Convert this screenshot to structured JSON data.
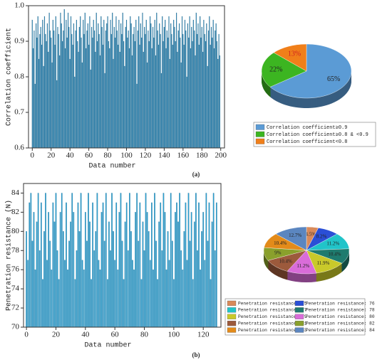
{
  "chart_data": [
    {
      "type": "bar",
      "caption": "(a)",
      "xlabel": "Data number",
      "ylabel": "Correlation coefficient",
      "color": "#2a82b0",
      "xlim": [
        -4,
        204
      ],
      "xticks": [
        0,
        20,
        40,
        60,
        80,
        100,
        120,
        140,
        160,
        180,
        200
      ],
      "ylim": [
        0.6,
        1
      ],
      "yticks": [
        0.6,
        0.7,
        0.8,
        0.9,
        {
          "value": 1,
          "label": "1.0"
        }
      ],
      "values": [
        0.96,
        0.88,
        0.93,
        0.78,
        0.95,
        0.91,
        0.97,
        0.85,
        0.92,
        0.94,
        0.89,
        0.96,
        0.83,
        0.97,
        0.92,
        0.9,
        0.95,
        0.87,
        0.98,
        0.93,
        0.91,
        0.84,
        0.96,
        0.93,
        0.89,
        0.97,
        0.79,
        0.94,
        0.92,
        0.86,
        0.98,
        0.95,
        0.9,
        0.93,
        0.99,
        0.88,
        0.96,
        0.91,
        0.98,
        0.94,
        0.85,
        0.97,
        0.92,
        0.89,
        0.95,
        0.8,
        0.93,
        0.96,
        0.9,
        0.87,
        0.94,
        0.97,
        0.91,
        0.84,
        0.96,
        0.92,
        0.98,
        0.88,
        0.93,
        0.95,
        0.89,
        0.97,
        0.82,
        0.94,
        0.91,
        0.96,
        0.93,
        0.87,
        0.98,
        0.9,
        0.95,
        0.92,
        0.86,
        0.97,
        0.94,
        0.89,
        0.96,
        0.81,
        0.93,
        0.95,
        0.97,
        0.9,
        0.88,
        0.96,
        0.92,
        0.98,
        0.85,
        0.94,
        0.91,
        0.97,
        0.93,
        0.89,
        0.96,
        0.87,
        0.95,
        0.92,
        0.98,
        0.9,
        0.83,
        0.94,
        0.96,
        0.91,
        0.93,
        0.88,
        0.97,
        0.95,
        0.86,
        0.92,
        0.94,
        0.9,
        0.96,
        0.78,
        0.93,
        0.97,
        0.89,
        0.95,
        0.91,
        0.98,
        0.87,
        0.94,
        0.92,
        0.96,
        0.84,
        0.93,
        0.9,
        0.97,
        0.95,
        0.88,
        0.94,
        0.91,
        0.96,
        0.86,
        0.98,
        0.93,
        0.89,
        0.95,
        0.92,
        0.81,
        0.97,
        0.9,
        0.94,
        0.96,
        0.88,
        0.93,
        0.91,
        0.97,
        0.85,
        0.95,
        0.92,
        0.89,
        0.96,
        0.94,
        0.9,
        0.98,
        0.87,
        0.93,
        0.95,
        0.91,
        0.84,
        0.97,
        0.92,
        0.89,
        0.96,
        0.93,
        0.8,
        0.95,
        0.91,
        0.97,
        0.88,
        0.94,
        0.9,
        0.96,
        0.93,
        0.86,
        0.98,
        0.92,
        0.95,
        0.89,
        0.97,
        0.91,
        0.94,
        0.87,
        0.96,
        0.92,
        0.9,
        0.95,
        0.83,
        0.93,
        0.97,
        0.89,
        0.94,
        0.91,
        0.96,
        0.88,
        0.93,
        0.95,
        0.9,
        0.85,
        0.92,
        0.86
      ]
    },
    {
      "type": "pie",
      "series": [
        {
          "name": "Correlation coefficient≥0.9",
          "color": "#5b9bd5",
          "values": [
            65
          ],
          "value_labels": [
            "65%"
          ]
        },
        {
          "name": "Correlation coefficient≥0.8 & <0.9",
          "color": "#3cb521",
          "values": [
            22
          ],
          "value_labels": [
            "22%"
          ]
        },
        {
          "name": "Correlation coefficient<0.8",
          "color": "#f07f1a",
          "values": [
            13
          ],
          "value_labels": [
            "13%"
          ]
        }
      ]
    },
    {
      "type": "bar",
      "caption": "(b)",
      "xlabel": "Data number",
      "ylabel": "Penetration resistance (N)",
      "color": "#2a9fd0",
      "xlim": [
        -2,
        132
      ],
      "xticks": [
        0,
        20,
        40,
        60,
        80,
        100,
        120
      ],
      "ylim": [
        70,
        85
      ],
      "yticks": [
        70,
        72,
        74,
        76,
        78,
        80,
        82,
        84
      ],
      "values": [
        80,
        77,
        83,
        84,
        79,
        82,
        76,
        81,
        84,
        78,
        83,
        75,
        80,
        84,
        77,
        82,
        79,
        76,
        83,
        81,
        84,
        78,
        75,
        82,
        84,
        80,
        77,
        83,
        76,
        79,
        81,
        84,
        82,
        75,
        78,
        83,
        80,
        84,
        77,
        76,
        82,
        79,
        84,
        81,
        75,
        83,
        78,
        80,
        84,
        77,
        76,
        82,
        83,
        79,
        84,
        75,
        81,
        78,
        84,
        80,
        77,
        83,
        76,
        82,
        84,
        79,
        75,
        81,
        83,
        78,
        84,
        80,
        77,
        76,
        82,
        84,
        79,
        83,
        75,
        81,
        78,
        84,
        82,
        80,
        77,
        83,
        76,
        84,
        79,
        75,
        81,
        83,
        78,
        84,
        82,
        76,
        80,
        77,
        84,
        79,
        75,
        82,
        83,
        81,
        84,
        78,
        76,
        80,
        83,
        77,
        84,
        79,
        82,
        75,
        81,
        84,
        78,
        83,
        76,
        80,
        82,
        77,
        84,
        79,
        83,
        75,
        81,
        84,
        78,
        83
      ]
    },
    {
      "type": "pie",
      "series": [
        {
          "name": "Penetration resistance: 75",
          "color": "#d98a5a",
          "values": [
            4.5
          ],
          "value_labels": [
            "4.5%"
          ]
        },
        {
          "name": "Penetration resistance: 76",
          "color": "#2a4fd6",
          "values": [
            8.2
          ],
          "value_labels": [
            "8.2%"
          ]
        },
        {
          "name": "Penetration resistance: 77",
          "color": "#21c4c9",
          "values": [
            11.2
          ],
          "value_labels": [
            "11.2%"
          ]
        },
        {
          "name": "Penetration resistance: 78",
          "color": "#1e7b6e",
          "values": [
            10.4
          ],
          "value_labels": [
            "10.4%"
          ]
        },
        {
          "name": "Penetration resistance: 79",
          "color": "#c9c92a",
          "values": [
            11.9
          ],
          "value_labels": [
            "11.9%"
          ]
        },
        {
          "name": "Penetration resistance: 80",
          "color": "#d96cd9",
          "values": [
            11.2
          ],
          "value_labels": [
            "11.2%"
          ]
        },
        {
          "name": "Penetration resistance: 81",
          "color": "#9c5a3c",
          "values": [
            10.4
          ],
          "value_labels": [
            "10.4%"
          ]
        },
        {
          "name": "Penetration resistance: 82",
          "color": "#8aa02c",
          "values": [
            9
          ],
          "value_labels": [
            "9%"
          ]
        },
        {
          "name": "Penetration resistance: 83",
          "color": "#e38b1a",
          "values": [
            10.4
          ],
          "value_labels": [
            "10.4%"
          ]
        },
        {
          "name": "Penetration resistance: 84",
          "color": "#5b86c0",
          "values": [
            12.7
          ],
          "value_labels": [
            "12.7%"
          ]
        }
      ]
    }
  ]
}
